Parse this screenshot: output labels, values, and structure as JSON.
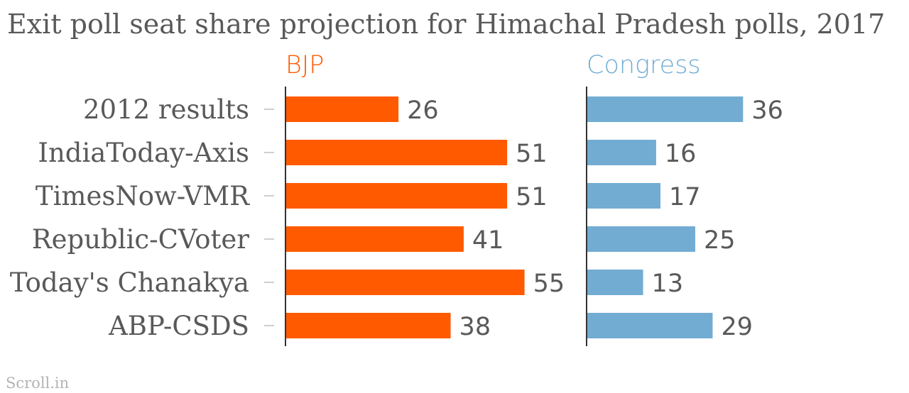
{
  "chart_data": {
    "type": "bar",
    "orientation": "horizontal",
    "title": "Exit poll seat share projection for Himachal Pradesh polls, 2017",
    "categories": [
      "2012 results",
      "IndiaToday-Axis",
      "TimesNow-VMR",
      "Republic-CVoter",
      "Today's Chanakya",
      "ABP-CSDS"
    ],
    "series": [
      {
        "name": "BJP",
        "color": "#ff5a00",
        "values": [
          26,
          51,
          51,
          41,
          55,
          38
        ]
      },
      {
        "name": "Congress",
        "color": "#72acd3",
        "values": [
          36,
          16,
          17,
          25,
          13,
          29
        ]
      }
    ],
    "source": "Scroll.in"
  }
}
